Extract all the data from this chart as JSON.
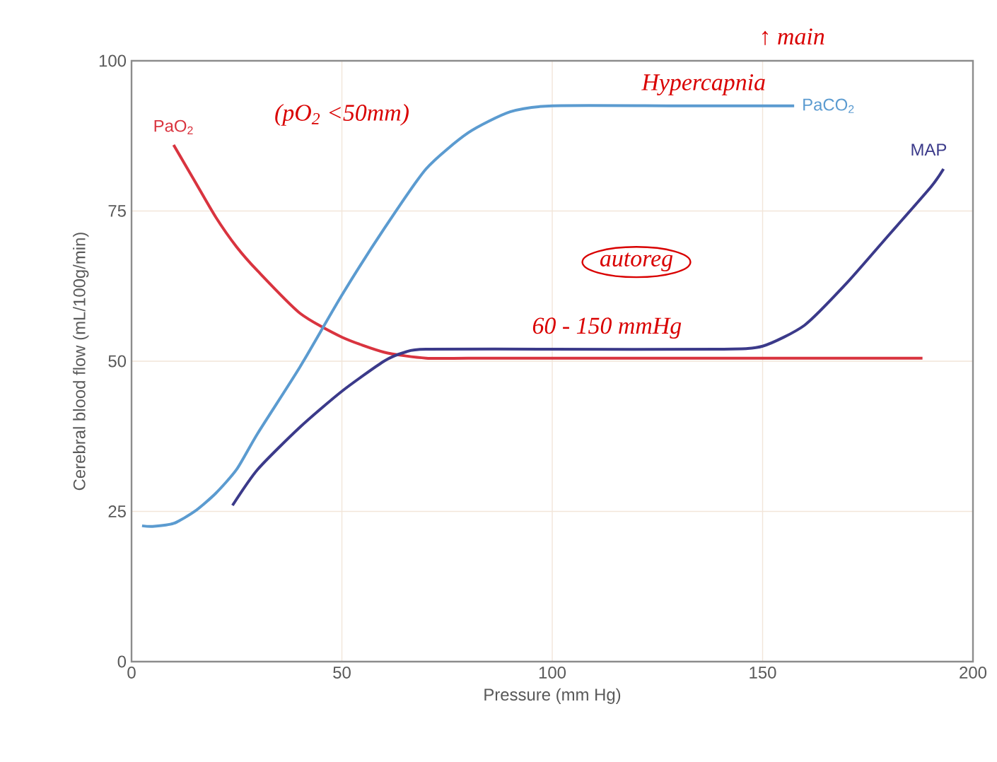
{
  "chart_data": {
    "type": "line",
    "xlabel": "Pressure (mm Hg)",
    "ylabel": "Cerebral blood flow (mL/100g/min)",
    "xlim": [
      0,
      200
    ],
    "ylim": [
      0,
      100
    ],
    "xticks": [
      0,
      50,
      100,
      150,
      200
    ],
    "yticks": [
      0,
      25,
      50,
      75,
      100
    ],
    "grid": true,
    "legend": false,
    "marker": "none",
    "line_style": "solid",
    "series": [
      {
        "name": "PaO$_{2}$",
        "color": "#d9343f",
        "x": [
          10,
          15,
          20,
          25,
          30,
          40,
          50,
          60,
          70,
          80,
          100,
          150,
          188
        ],
        "values": [
          86,
          80,
          74,
          69,
          65,
          58,
          54,
          51.5,
          50.5,
          50.5,
          50.5,
          50.5,
          50.5
        ]
      },
      {
        "name": "PaCO$_{2}$",
        "color": "#5b9bd0",
        "x": [
          2.5,
          5,
          10,
          15,
          20,
          25,
          30,
          40,
          50,
          60,
          70,
          80,
          90,
          100,
          130,
          157.5
        ],
        "values": [
          22.6,
          22.5,
          23,
          25,
          28,
          32,
          38,
          49,
          61,
          72,
          82,
          88,
          91.5,
          92.5,
          92.5,
          92.5
        ]
      },
      {
        "name": "MAP",
        "color": "#3b3a8a",
        "x": [
          24,
          30,
          40,
          50,
          60,
          65,
          70,
          100,
          140,
          150,
          160,
          170,
          180,
          190,
          193
        ],
        "values": [
          26,
          32,
          39,
          45,
          50,
          51.5,
          52,
          52,
          52,
          52.5,
          56,
          63,
          71,
          79,
          82
        ]
      }
    ],
    "annotations": [
      "Hypercapnia",
      "↑ main",
      "(pO$_{2}$ <50mm)",
      "autoreg",
      "60 - 150 mmHg"
    ]
  }
}
